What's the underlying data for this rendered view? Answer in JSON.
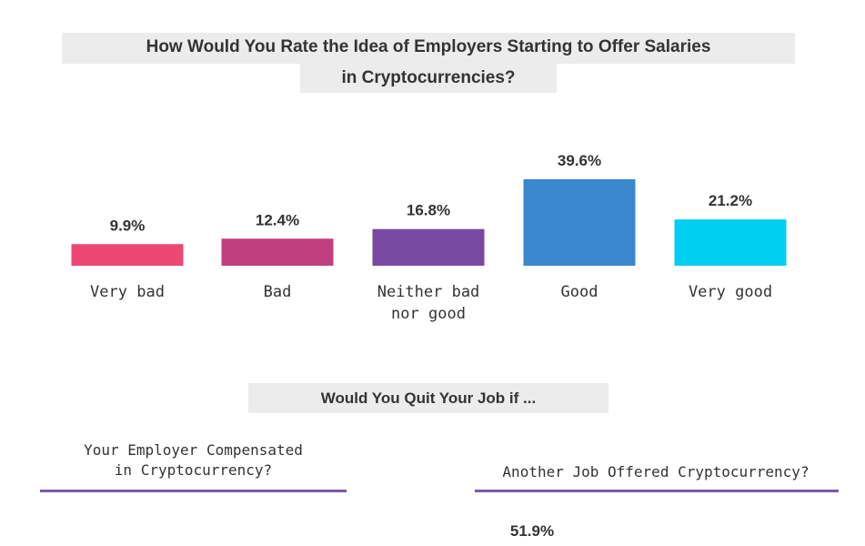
{
  "chart_data": {
    "type": "bar",
    "title_line1": "How Would You Rate the Idea of Employers Starting to Offer Salaries",
    "title_line2": "in Cryptocurrencies?",
    "categories": [
      "Very bad",
      "Bad",
      "Neither bad\nnor good",
      "Good",
      "Very good"
    ],
    "values": [
      9.9,
      12.4,
      16.8,
      39.6,
      21.2
    ],
    "value_labels": [
      "9.9%",
      "12.4%",
      "16.8%",
      "39.6%",
      "21.2%"
    ],
    "colors": [
      "#ee4673",
      "#bf3f7f",
      "#7a4aa3",
      "#3a87cd",
      "#00cff2"
    ],
    "ylim": [
      0,
      40
    ],
    "grid": false
  },
  "section2": {
    "title": "Would You Quit Your Job if ...",
    "left_question": "Your Employer Compensated\nin Cryptocurrency?",
    "right_question": "Another Job Offered Cryptocurrency?",
    "right_value": "51.9%",
    "rule_color": "#7a5aa6"
  }
}
